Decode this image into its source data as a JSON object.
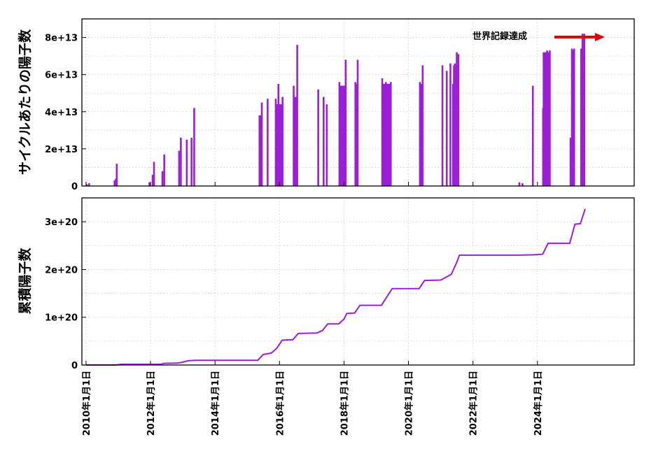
{
  "chart_data": [
    {
      "type": "bar",
      "ylabel": "サイクルあたりの陽子数",
      "ylim": [
        0,
        90000000000000.0
      ],
      "yticks": [
        0,
        20000000000000.0,
        40000000000000.0,
        60000000000000.0,
        80000000000000.0
      ],
      "ytick_labels": [
        "0",
        "2e+13",
        "4e+13",
        "6e+13",
        "8e+13"
      ],
      "grid": true,
      "color": "#9b1fd6",
      "annotation": {
        "text": "世界記録達成",
        "arrow_color": "#e00000"
      },
      "spikes": [
        {
          "x": "2010-01-10",
          "y": 1000000000000.0
        },
        {
          "x": "2010-02-05",
          "y": 1500000000000.0
        },
        {
          "x": "2010-11-20",
          "y": 3000000000000.0
        },
        {
          "x": "2010-12-05",
          "y": 4000000000000.0
        },
        {
          "x": "2010-12-15",
          "y": 12000000000000.0
        },
        {
          "x": "2011-12-20",
          "y": 2000000000000.0
        },
        {
          "x": "2012-01-25",
          "y": 6000000000000.0
        },
        {
          "x": "2012-02-10",
          "y": 13000000000000.0
        },
        {
          "x": "2012-05-15",
          "y": 8000000000000.0
        },
        {
          "x": "2012-06-05",
          "y": 17000000000000.0
        },
        {
          "x": "2012-11-20",
          "y": 19000000000000.0
        },
        {
          "x": "2012-12-10",
          "y": 26000000000000.0
        },
        {
          "x": "2013-02-15",
          "y": 25000000000000.0
        },
        {
          "x": "2013-04-10",
          "y": 26000000000000.0
        },
        {
          "x": "2013-05-10",
          "y": 42000000000000.0
        },
        {
          "x": "2015-05-20",
          "y": 38000000000000.0
        },
        {
          "x": "2015-06-15",
          "y": 45000000000000.0
        },
        {
          "x": "2015-08-20",
          "y": 47000000000000.0
        },
        {
          "x": "2015-11-20",
          "y": 47000000000000.0
        },
        {
          "x": "2015-12-20",
          "y": 55000000000000.0
        },
        {
          "x": "2016-02-05",
          "y": 48000000000000.0
        },
        {
          "x": "2016-06-10",
          "y": 54000000000000.0
        },
        {
          "x": "2016-07-20",
          "y": 76000000000000.0
        },
        {
          "x": "2017-03-15",
          "y": 52000000000000.0
        },
        {
          "x": "2017-05-15",
          "y": 48000000000000.0
        },
        {
          "x": "2017-06-20",
          "y": 44000000000000.0
        },
        {
          "x": "2017-11-10",
          "y": 56000000000000.0
        },
        {
          "x": "2018-01-20",
          "y": 68000000000000.0
        },
        {
          "x": "2018-05-10",
          "y": 56000000000000.0
        },
        {
          "x": "2018-06-05",
          "y": 68000000000000.0
        },
        {
          "x": "2019-03-10",
          "y": 58000000000000.0
        },
        {
          "x": "2019-04-20",
          "y": 56000000000000.0
        },
        {
          "x": "2019-06-15",
          "y": 56000000000000.0
        },
        {
          "x": "2020-05-10",
          "y": 56000000000000.0
        },
        {
          "x": "2020-06-10",
          "y": 65000000000000.0
        },
        {
          "x": "2021-01-20",
          "y": 65000000000000.0
        },
        {
          "x": "2021-03-10",
          "y": 62000000000000.0
        },
        {
          "x": "2021-04-20",
          "y": 66000000000000.0
        },
        {
          "x": "2021-05-20",
          "y": 55000000000000.0
        },
        {
          "x": "2021-06-10",
          "y": 66000000000000.0
        },
        {
          "x": "2021-07-01",
          "y": 72000000000000.0
        },
        {
          "x": "2021-07-20",
          "y": 71000000000000.0
        },
        {
          "x": "2023-06-10",
          "y": 2000000000000.0
        },
        {
          "x": "2023-07-15",
          "y": 1500000000000.0
        },
        {
          "x": "2023-11-10",
          "y": 54000000000000.0
        },
        {
          "x": "2024-03-05",
          "y": 42000000000000.0
        },
        {
          "x": "2024-03-25",
          "y": 72000000000000.0
        },
        {
          "x": "2024-04-20",
          "y": 73000000000000.0
        },
        {
          "x": "2024-05-20",
          "y": 73000000000000.0
        },
        {
          "x": "2025-01-10",
          "y": 26000000000000.0
        },
        {
          "x": "2025-01-25",
          "y": 74000000000000.0
        },
        {
          "x": "2025-02-20",
          "y": 74000000000000.0
        },
        {
          "x": "2025-05-10",
          "y": 74000000000000.0
        },
        {
          "x": "2025-05-25",
          "y": 82000000000000.0
        },
        {
          "x": "2025-06-15",
          "y": 82000000000000.0
        }
      ],
      "run_blocks": [
        {
          "start": "2015-05-15",
          "end": "2015-06-20",
          "height": 38000000000000.0
        },
        {
          "start": "2015-11-15",
          "end": "2016-02-10",
          "height": 44000000000000.0
        },
        {
          "start": "2016-06-05",
          "end": "2016-07-15",
          "height": 48000000000000.0
        },
        {
          "start": "2017-11-05",
          "end": "2018-01-25",
          "height": 54000000000000.0
        },
        {
          "start": "2018-05-05",
          "end": "2018-06-01",
          "height": 55000000000000.0
        },
        {
          "start": "2019-03-05",
          "end": "2019-06-20",
          "height": 55000000000000.0
        },
        {
          "start": "2020-05-05",
          "end": "2020-06-15",
          "height": 55000000000000.0
        },
        {
          "start": "2021-05-20",
          "end": "2021-07-25",
          "height": 65000000000000.0
        },
        {
          "start": "2024-03-01",
          "end": "2024-05-25",
          "height": 72000000000000.0
        },
        {
          "start": "2025-01-20",
          "end": "2025-03-01",
          "height": 73000000000000.0
        },
        {
          "start": "2025-05-20",
          "end": "2025-06-20",
          "height": 81000000000000.0
        }
      ]
    },
    {
      "type": "line",
      "ylabel": "累積陽子数",
      "ylim": [
        0,
        3.5e+20
      ],
      "yticks": [
        0,
        1e+20,
        2e+20,
        3e+20
      ],
      "ytick_labels": [
        "0",
        "1e+20",
        "2e+20",
        "3e+20"
      ],
      "grid": true,
      "color": "#9b1fd6",
      "points": [
        {
          "x": "2010-01-01",
          "y": 0
        },
        {
          "x": "2010-12-01",
          "y": 0
        },
        {
          "x": "2011-02-01",
          "y": 1.5e+18
        },
        {
          "x": "2012-05-01",
          "y": 1.5e+18
        },
        {
          "x": "2012-06-01",
          "y": 3.5e+18
        },
        {
          "x": "2012-11-01",
          "y": 4e+18
        },
        {
          "x": "2013-01-01",
          "y": 6e+18
        },
        {
          "x": "2013-03-01",
          "y": 9e+18
        },
        {
          "x": "2013-06-01",
          "y": 1e+19
        },
        {
          "x": "2015-05-01",
          "y": 1e+19
        },
        {
          "x": "2015-07-01",
          "y": 2.2e+19
        },
        {
          "x": "2015-10-01",
          "y": 2.5e+19
        },
        {
          "x": "2015-12-01",
          "y": 3.5e+19
        },
        {
          "x": "2016-02-01",
          "y": 5.2e+19
        },
        {
          "x": "2016-06-01",
          "y": 5.3e+19
        },
        {
          "x": "2016-08-01",
          "y": 6.6e+19
        },
        {
          "x": "2017-03-01",
          "y": 6.7e+19
        },
        {
          "x": "2017-05-01",
          "y": 7.2e+19
        },
        {
          "x": "2017-07-01",
          "y": 8.6e+19
        },
        {
          "x": "2017-11-01",
          "y": 8.6e+19
        },
        {
          "x": "2018-01-01",
          "y": 9.6e+19
        },
        {
          "x": "2018-02-01",
          "y": 1.08e+20
        },
        {
          "x": "2018-05-01",
          "y": 1.09e+20
        },
        {
          "x": "2018-07-01",
          "y": 1.25e+20
        },
        {
          "x": "2019-03-01",
          "y": 1.25e+20
        },
        {
          "x": "2019-07-01",
          "y": 1.6e+20
        },
        {
          "x": "2020-05-01",
          "y": 1.6e+20
        },
        {
          "x": "2020-07-01",
          "y": 1.77e+20
        },
        {
          "x": "2021-01-01",
          "y": 1.78e+20
        },
        {
          "x": "2021-05-01",
          "y": 1.9e+20
        },
        {
          "x": "2021-07-01",
          "y": 2.15e+20
        },
        {
          "x": "2021-08-01",
          "y": 2.3e+20
        },
        {
          "x": "2023-06-01",
          "y": 2.3e+20
        },
        {
          "x": "2023-12-01",
          "y": 2.31e+20
        },
        {
          "x": "2024-03-01",
          "y": 2.32e+20
        },
        {
          "x": "2024-05-01",
          "y": 2.55e+20
        },
        {
          "x": "2025-01-01",
          "y": 2.55e+20
        },
        {
          "x": "2025-03-01",
          "y": 2.95e+20
        },
        {
          "x": "2025-05-01",
          "y": 2.96e+20
        },
        {
          "x": "2025-06-25",
          "y": 3.27e+20
        }
      ]
    }
  ],
  "x_axis": {
    "range": [
      "2009-11-15",
      "2027-01-01"
    ],
    "ticks": [
      "2010-01-01",
      "2012-01-01",
      "2014-01-01",
      "2016-01-01",
      "2018-01-01",
      "2020-01-01",
      "2022-01-01",
      "2024-01-01"
    ],
    "tick_labels": [
      "2010年1月1日",
      "2012年1月1日",
      "2014年1月1日",
      "2016年1月1日",
      "2018年1月1日",
      "2020年1月1日",
      "2022年1月1日",
      "2024年1月1日"
    ]
  }
}
